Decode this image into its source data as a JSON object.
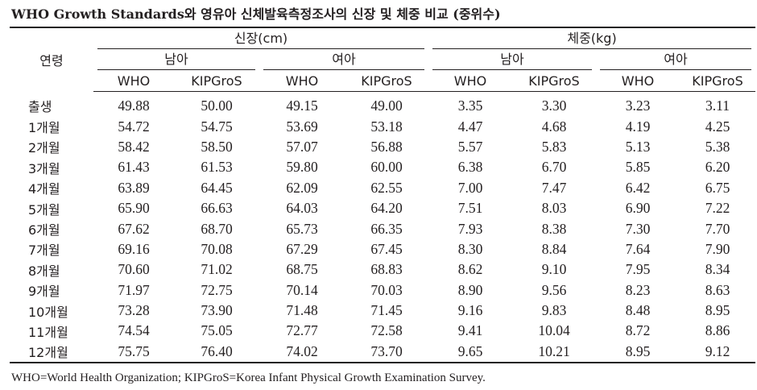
{
  "title": "WHO Growth Standards와 영유아 신체발육측정조사의 신장 및 체중 비교 (중위수)",
  "header": {
    "age_label": "연령",
    "height_label": "신장(cm)",
    "weight_label": "체중(kg)",
    "male_label": "남아",
    "female_label": "여아",
    "who_label": "WHO",
    "kipgros_label": "KIPGroS"
  },
  "rows": [
    [
      "출생",
      "49.88",
      "50.00",
      "49.15",
      "49.00",
      "3.35",
      "3.30",
      "3.23",
      "3.11"
    ],
    [
      "1개월",
      "54.72",
      "54.75",
      "53.69",
      "53.18",
      "4.47",
      "4.68",
      "4.19",
      "4.25"
    ],
    [
      "2개월",
      "58.42",
      "58.50",
      "57.07",
      "56.88",
      "5.57",
      "5.83",
      "5.13",
      "5.38"
    ],
    [
      "3개월",
      "61.43",
      "61.53",
      "59.80",
      "60.00",
      "6.38",
      "6.70",
      "5.85",
      "6.20"
    ],
    [
      "4개월",
      "63.89",
      "64.45",
      "62.09",
      "62.55",
      "7.00",
      "7.47",
      "6.42",
      "6.75"
    ],
    [
      "5개월",
      "65.90",
      "66.63",
      "64.03",
      "64.20",
      "7.51",
      "8.03",
      "6.90",
      "7.22"
    ],
    [
      "6개월",
      "67.62",
      "68.70",
      "65.73",
      "66.35",
      "7.93",
      "8.38",
      "7.30",
      "7.70"
    ],
    [
      "7개월",
      "69.16",
      "70.08",
      "67.29",
      "67.45",
      "8.30",
      "8.84",
      "7.64",
      "7.90"
    ],
    [
      "8개월",
      "70.60",
      "71.02",
      "68.75",
      "68.83",
      "8.62",
      "9.10",
      "7.95",
      "8.34"
    ],
    [
      "9개월",
      "71.97",
      "72.75",
      "70.14",
      "70.03",
      "8.90",
      "9.56",
      "8.23",
      "8.63"
    ],
    [
      "10개월",
      "73.28",
      "73.90",
      "71.48",
      "71.45",
      "9.16",
      "9.83",
      "8.48",
      "8.95"
    ],
    [
      "11개월",
      "74.54",
      "75.05",
      "72.77",
      "72.58",
      "9.41",
      "10.04",
      "8.72",
      "8.86"
    ],
    [
      "12개월",
      "75.75",
      "76.40",
      "74.02",
      "73.70",
      "9.65",
      "10.21",
      "8.95",
      "9.12"
    ]
  ],
  "footnote": "WHO=World Health Organization; KIPGroS=Korea Infant Physical Growth Examination Survey."
}
